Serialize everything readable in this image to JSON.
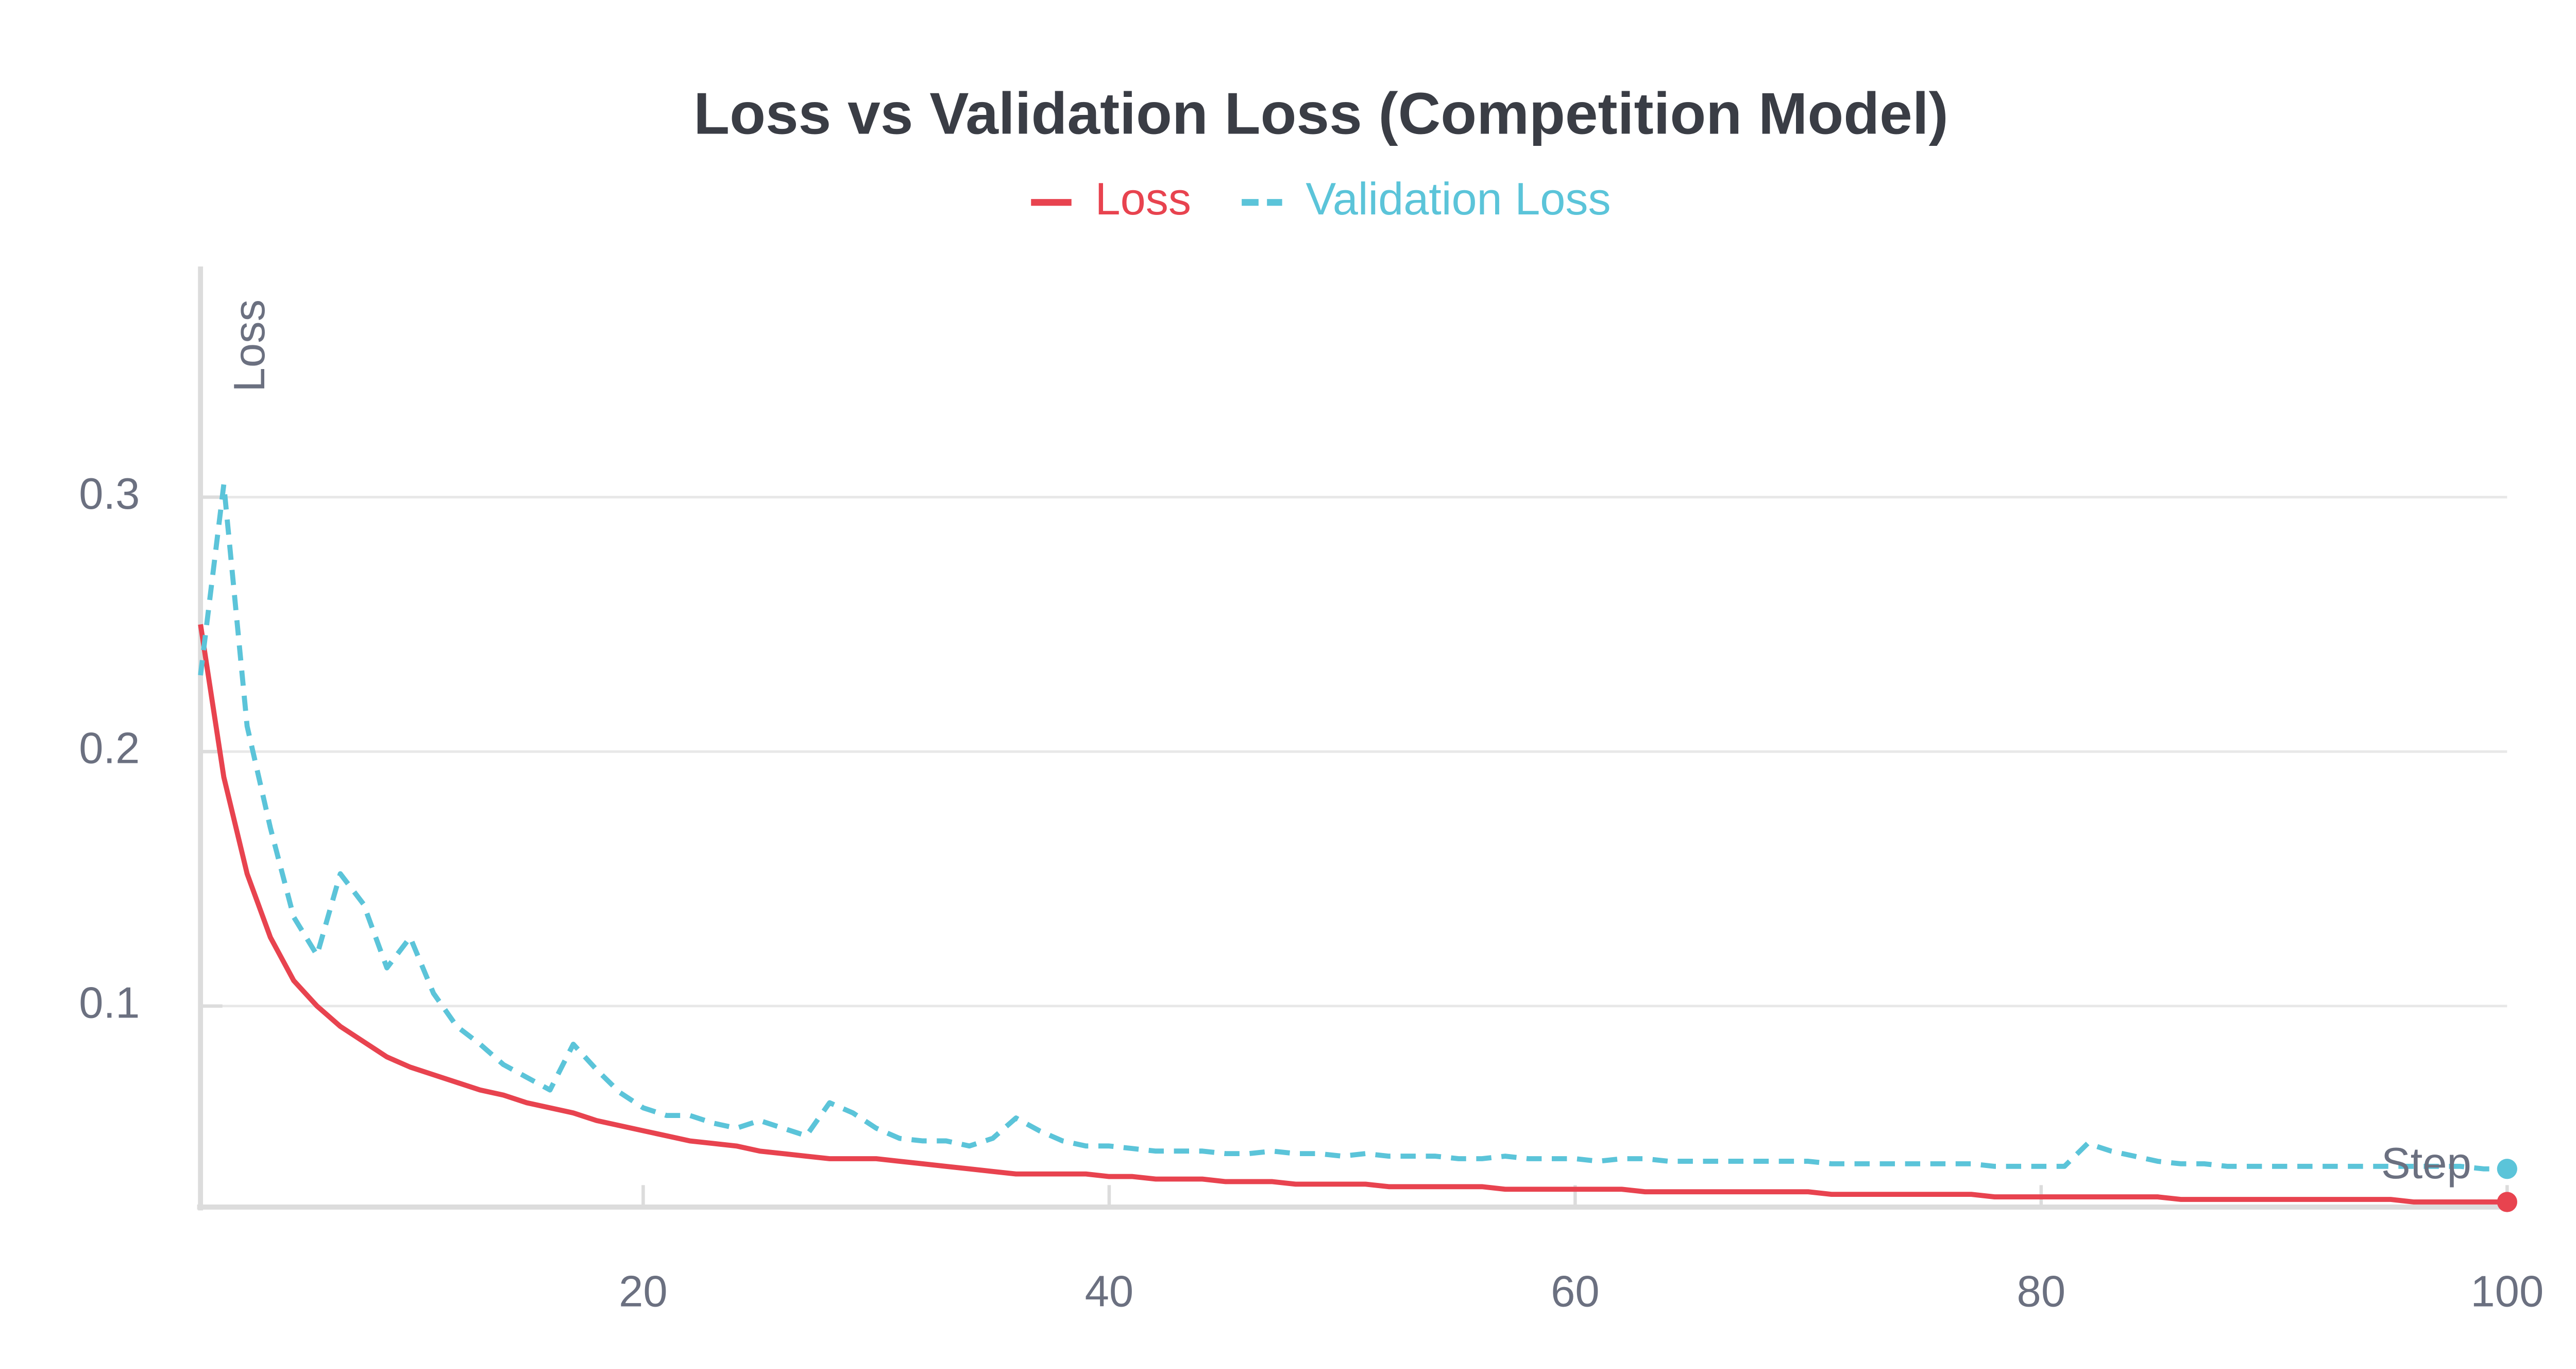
{
  "chart_data": {
    "type": "line",
    "title": "Loss vs Validation Loss (Competition Model)",
    "y_label": "Loss",
    "x_label": "Step",
    "x": [
      1,
      2,
      3,
      4,
      5,
      6,
      7,
      8,
      9,
      10,
      11,
      12,
      13,
      14,
      15,
      16,
      17,
      18,
      19,
      20,
      21,
      22,
      23,
      24,
      25,
      26,
      27,
      28,
      29,
      30,
      31,
      32,
      33,
      34,
      35,
      36,
      37,
      38,
      39,
      40,
      41,
      42,
      43,
      44,
      45,
      46,
      47,
      48,
      49,
      50,
      51,
      52,
      53,
      54,
      55,
      56,
      57,
      58,
      59,
      60,
      61,
      62,
      63,
      64,
      65,
      66,
      67,
      68,
      69,
      70,
      71,
      72,
      73,
      74,
      75,
      76,
      77,
      78,
      79,
      80,
      81,
      82,
      83,
      84,
      85,
      86,
      87,
      88,
      89,
      90,
      91,
      92,
      93,
      94,
      95,
      96,
      97,
      98,
      99,
      100
    ],
    "series": [
      {
        "name": "Loss",
        "color": "#e8434f",
        "dashed": false,
        "values": [
          0.25,
          0.19,
          0.152,
          0.127,
          0.11,
          0.1,
          0.092,
          0.086,
          0.08,
          0.076,
          0.073,
          0.07,
          0.067,
          0.065,
          0.062,
          0.06,
          0.058,
          0.055,
          0.053,
          0.051,
          0.049,
          0.047,
          0.046,
          0.045,
          0.043,
          0.042,
          0.041,
          0.04,
          0.04,
          0.04,
          0.039,
          0.038,
          0.037,
          0.036,
          0.035,
          0.034,
          0.034,
          0.034,
          0.034,
          0.033,
          0.033,
          0.032,
          0.032,
          0.032,
          0.031,
          0.031,
          0.031,
          0.03,
          0.03,
          0.03,
          0.03,
          0.029,
          0.029,
          0.029,
          0.029,
          0.029,
          0.028,
          0.028,
          0.028,
          0.028,
          0.028,
          0.028,
          0.027,
          0.027,
          0.027,
          0.027,
          0.027,
          0.027,
          0.027,
          0.027,
          0.026,
          0.026,
          0.026,
          0.026,
          0.026,
          0.026,
          0.026,
          0.025,
          0.025,
          0.025,
          0.025,
          0.025,
          0.025,
          0.025,
          0.025,
          0.024,
          0.024,
          0.024,
          0.024,
          0.024,
          0.024,
          0.024,
          0.024,
          0.024,
          0.024,
          0.023,
          0.023,
          0.023,
          0.023,
          0.023
        ]
      },
      {
        "name": "Validation Loss",
        "color": "#5bc4d9",
        "dashed": true,
        "values": [
          0.23,
          0.305,
          0.21,
          0.17,
          0.135,
          0.12,
          0.152,
          0.14,
          0.115,
          0.127,
          0.105,
          0.092,
          0.085,
          0.077,
          0.072,
          0.067,
          0.085,
          0.075,
          0.066,
          0.06,
          0.057,
          0.057,
          0.054,
          0.052,
          0.055,
          0.052,
          0.049,
          0.062,
          0.058,
          0.052,
          0.048,
          0.047,
          0.047,
          0.045,
          0.048,
          0.056,
          0.051,
          0.047,
          0.045,
          0.045,
          0.044,
          0.043,
          0.043,
          0.043,
          0.042,
          0.042,
          0.043,
          0.042,
          0.042,
          0.041,
          0.042,
          0.041,
          0.041,
          0.041,
          0.04,
          0.04,
          0.041,
          0.04,
          0.04,
          0.04,
          0.039,
          0.04,
          0.04,
          0.039,
          0.039,
          0.039,
          0.039,
          0.039,
          0.039,
          0.039,
          0.038,
          0.038,
          0.038,
          0.038,
          0.038,
          0.038,
          0.038,
          0.037,
          0.037,
          0.037,
          0.037,
          0.046,
          0.043,
          0.041,
          0.039,
          0.038,
          0.038,
          0.037,
          0.037,
          0.037,
          0.037,
          0.037,
          0.037,
          0.037,
          0.037,
          0.037,
          0.037,
          0.037,
          0.036,
          0.036
        ]
      }
    ],
    "xlim": [
      1,
      100
    ],
    "ylim": [
      0.021,
      0.39
    ],
    "xticks": [
      20,
      40,
      60,
      80,
      100
    ],
    "yticks": [
      0.1,
      0.2,
      0.3
    ],
    "grid": true,
    "legend": "top"
  }
}
